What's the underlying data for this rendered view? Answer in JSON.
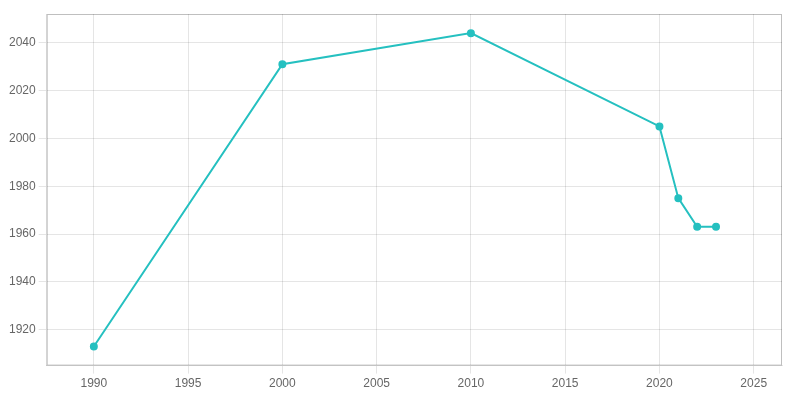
{
  "chart_data": {
    "type": "line",
    "x": [
      1990,
      2000,
      2010,
      2020,
      2021,
      2022,
      2023
    ],
    "values": [
      1913,
      2031,
      2044,
      2005,
      1975,
      1963,
      1963
    ],
    "color": "#25C0C0",
    "marker": "circle",
    "xlim": [
      1987.5,
      2026.5
    ],
    "ylim": [
      1905,
      2052
    ],
    "xticks": [
      1990,
      1995,
      2000,
      2005,
      2010,
      2015,
      2020,
      2025
    ],
    "yticks": [
      1920,
      1940,
      1960,
      1980,
      2000,
      2020,
      2040
    ],
    "grid": true
  }
}
